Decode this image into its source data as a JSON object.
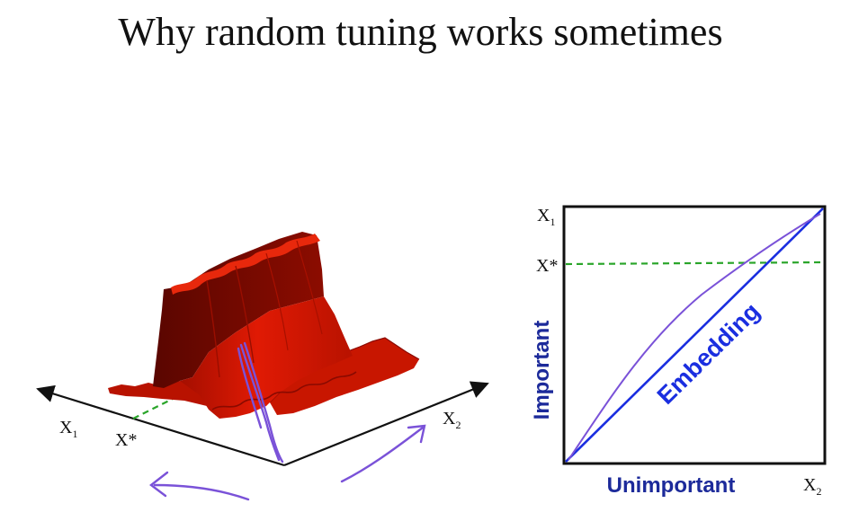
{
  "title": "Why random tuning works sometimes",
  "surface_plot": {
    "axis_x1": "X",
    "axis_x1_sub": "1",
    "axis_x2": "X",
    "axis_x2_sub": "2",
    "optimum_label": "X*"
  },
  "embedding_plot": {
    "y_top_label": "X",
    "y_top_sub": "1",
    "x_right_label": "X",
    "x_right_sub": "2",
    "optimum_label": "X*",
    "ylabel": "Important",
    "xlabel": "Unimportant",
    "line_label": "Embedding"
  },
  "colors": {
    "surface": "#cc1400",
    "surface_shadow": "#7a0a00",
    "guide_dashed": "#2aa52a",
    "embedding": "#1a2ee0",
    "axis_label_blue": "#1c2a9a",
    "annotation_pen": "#7a52d8"
  }
}
